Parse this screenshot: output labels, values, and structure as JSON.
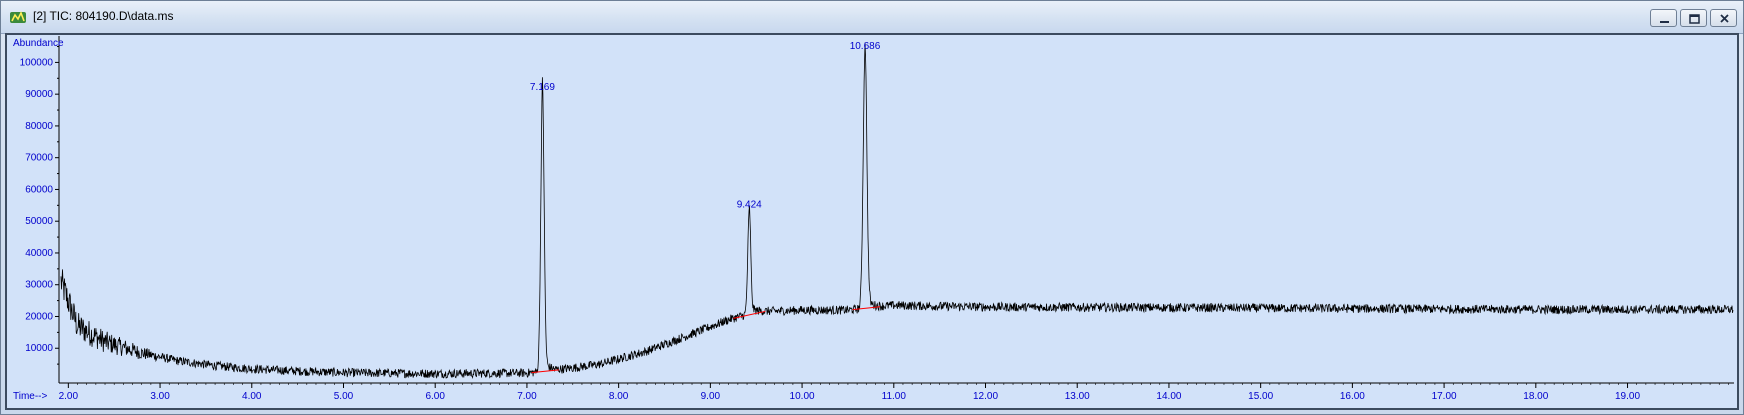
{
  "window": {
    "title": "[2] TIC: 804190.D\\data.ms",
    "app_icon": "chemstation-icon",
    "buttons": [
      "minimize-icon",
      "restore-icon",
      "close-icon"
    ]
  },
  "colors": {
    "plot_background": "#d2e2f9",
    "trace": "#000000",
    "axis_labels": "#0000cc",
    "baseline_marks": "#ff0000"
  },
  "chart_data": {
    "type": "line",
    "title": "",
    "ylabel": "Abundance",
    "xlabel": "Time-->",
    "xlim": [
      1.92,
      20.15
    ],
    "ylim": [
      0,
      108000
    ],
    "x_ticks": [
      2.0,
      3.0,
      4.0,
      5.0,
      6.0,
      7.0,
      8.0,
      9.0,
      10.0,
      11.0,
      12.0,
      13.0,
      14.0,
      15.0,
      16.0,
      17.0,
      18.0,
      19.0
    ],
    "x_tick_labels": [
      "2.00",
      "3.00",
      "4.00",
      "5.00",
      "6.00",
      "7.00",
      "8.00",
      "9.00",
      "10.00",
      "11.00",
      "12.00",
      "13.00",
      "14.00",
      "15.00",
      "16.00",
      "17.00",
      "18.00",
      "19.00"
    ],
    "y_ticks": [
      10000,
      20000,
      30000,
      40000,
      50000,
      60000,
      70000,
      80000,
      90000,
      100000
    ],
    "y_tick_labels": [
      "10000",
      "20000",
      "30000",
      "40000",
      "50000",
      "60000",
      "70000",
      "80000",
      "90000",
      "100000"
    ],
    "grid": false,
    "baseline_profile": [
      [
        1.92,
        31000
      ],
      [
        2.1,
        17000
      ],
      [
        2.4,
        12000
      ],
      [
        2.8,
        8500
      ],
      [
        3.2,
        6000
      ],
      [
        3.6,
        4500
      ],
      [
        4.0,
        3500
      ],
      [
        4.5,
        2800
      ],
      [
        5.0,
        2300
      ],
      [
        6.0,
        2000
      ],
      [
        7.0,
        2200
      ],
      [
        7.3,
        3000
      ],
      [
        7.8,
        5000
      ],
      [
        8.3,
        9000
      ],
      [
        8.8,
        14500
      ],
      [
        9.2,
        19000
      ],
      [
        9.5,
        21500
      ],
      [
        10.0,
        22000
      ],
      [
        10.5,
        22000
      ],
      [
        11.0,
        23500
      ],
      [
        12.0,
        23000
      ],
      [
        14.0,
        22800
      ],
      [
        16.0,
        22500
      ],
      [
        18.0,
        22200
      ],
      [
        20.15,
        22200
      ]
    ],
    "noise_amplitude": 1400,
    "peaks": [
      {
        "rt": 7.169,
        "label": "7.169",
        "abundance": 90000,
        "width": 0.018
      },
      {
        "rt": 9.424,
        "label": "9.424",
        "abundance": 53000,
        "width": 0.016
      },
      {
        "rt": 10.686,
        "label": "10.686",
        "abundance": 103000,
        "width": 0.02
      }
    ],
    "integration_baselines": [
      {
        "from": 7.05,
        "to": 7.35
      },
      {
        "from": 9.25,
        "to": 9.6
      },
      {
        "from": 10.55,
        "to": 10.85
      }
    ]
  }
}
